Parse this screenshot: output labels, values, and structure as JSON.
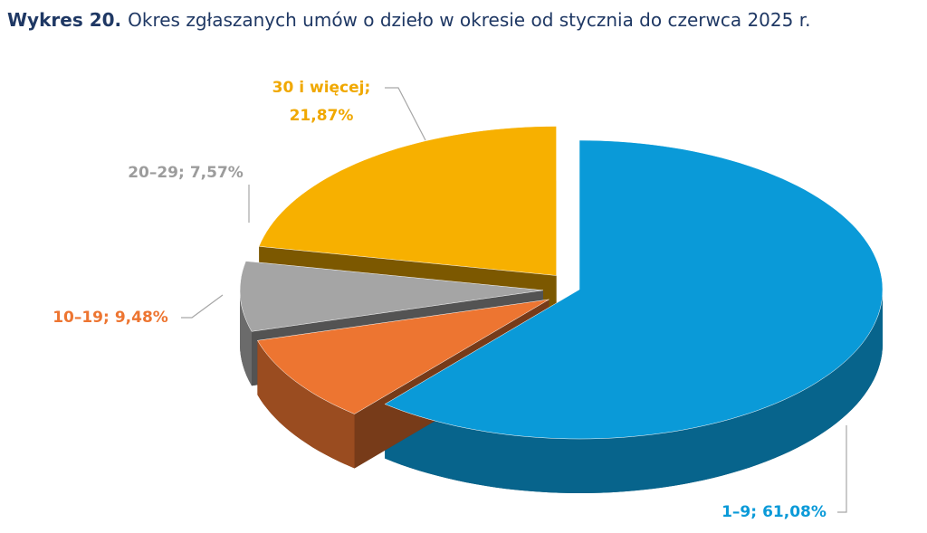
{
  "chart_data": {
    "type": "pie3d",
    "title_label": "Wykres 20.",
    "title": "Okres zgłaszanych umów o dzieło w okresie od stycznia do czerwca 2025 r.",
    "categories": [
      "1–9",
      "10–19",
      "20–29",
      "30 i więcej"
    ],
    "values": [
      61.08,
      9.48,
      7.57,
      21.87
    ],
    "value_labels": [
      "61,08%",
      "9,48%",
      "7,57%",
      "21,87%"
    ],
    "label_separator": ";",
    "colors": [
      "#0a9ad8",
      "#ed7531",
      "#a5a5a5",
      "#f7b000"
    ]
  }
}
